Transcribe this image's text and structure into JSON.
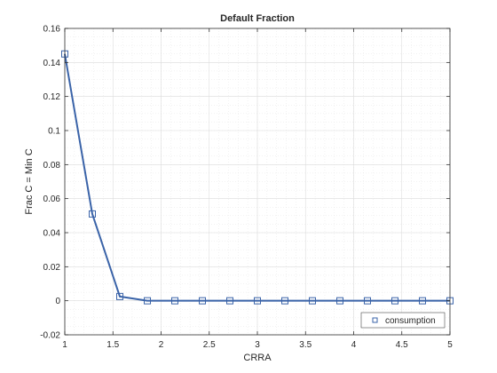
{
  "chart_data": {
    "type": "line",
    "title": "Default Fraction",
    "xlabel": "CRRA",
    "ylabel": "Frac C = Min C",
    "xlim": [
      1,
      5
    ],
    "ylim": [
      -0.02,
      0.16
    ],
    "xticks": [
      1,
      1.5,
      2,
      2.5,
      3,
      3.5,
      4,
      4.5,
      5
    ],
    "xtick_labels": [
      "1",
      "1.5",
      "2",
      "2.5",
      "3",
      "3.5",
      "4",
      "4.5",
      "5"
    ],
    "yticks": [
      -0.02,
      0,
      0.02,
      0.04,
      0.06,
      0.08,
      0.1,
      0.12,
      0.14,
      0.16
    ],
    "ytick_labels": [
      "-0.02",
      "0",
      "0.02",
      "0.04",
      "0.06",
      "0.08",
      "0.1",
      "0.12",
      "0.14",
      "0.16"
    ],
    "grid": true,
    "minor_grid": true,
    "legend_position": "bottom-right",
    "series": [
      {
        "name": "consumption",
        "color": "#3a63a8",
        "marker": "square",
        "x": [
          1,
          1.2857,
          1.5714,
          1.8571,
          2.1429,
          2.4286,
          2.7143,
          3,
          3.2857,
          3.5714,
          3.8571,
          4.1429,
          4.4286,
          4.7143,
          5
        ],
        "y": [
          0.145,
          0.051,
          0.0025,
          0,
          0,
          0,
          0,
          0,
          0,
          0,
          0,
          0,
          0,
          0,
          0
        ]
      }
    ]
  }
}
